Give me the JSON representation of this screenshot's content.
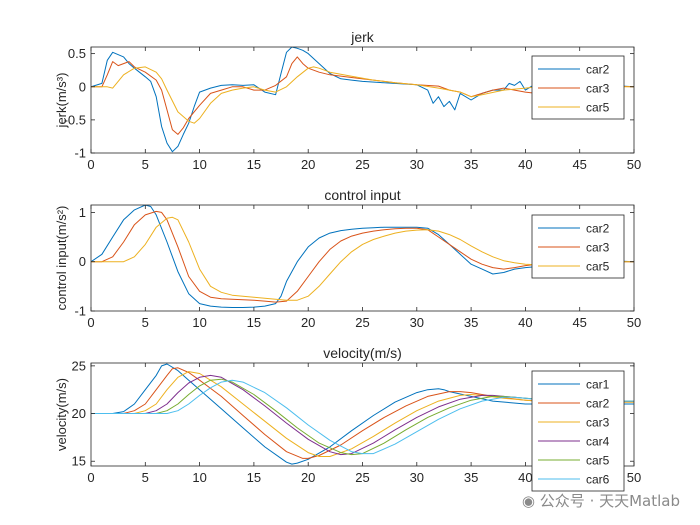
{
  "chart_data": [
    {
      "type": "line",
      "title": "jerk",
      "ylabel": "jerk(m/s³)",
      "xlim": [
        0,
        50
      ],
      "ylim": [
        -1,
        0.6
      ],
      "xticks": [
        0,
        5,
        10,
        15,
        20,
        25,
        30,
        35,
        40,
        45,
        50
      ],
      "yticks": [
        -1,
        -0.5,
        0,
        0.5
      ],
      "ytick_labels": [
        "-1",
        "-0.5",
        "0",
        "0.5"
      ],
      "legend": "top-right",
      "series": [
        {
          "name": "car2",
          "color": "#0072BD",
          "x": [
            0,
            1,
            1.5,
            2,
            3,
            3.5,
            4,
            5,
            5.5,
            6,
            6.5,
            7,
            7.5,
            8,
            8.5,
            9,
            9.5,
            10,
            11,
            12,
            13,
            14,
            15,
            16,
            17,
            17.5,
            18,
            18.5,
            19,
            19.5,
            20,
            21,
            22,
            23,
            24,
            25,
            27,
            30,
            31,
            31.5,
            32,
            32.5,
            33,
            33.5,
            34,
            35,
            36,
            37,
            38,
            38.5,
            39,
            39.5,
            40,
            41,
            42,
            43,
            44,
            45,
            46,
            47,
            48,
            49,
            50
          ],
          "y": [
            0,
            0.05,
            0.4,
            0.52,
            0.45,
            0.35,
            0.28,
            0.15,
            0.08,
            -0.15,
            -0.6,
            -0.85,
            -0.98,
            -0.9,
            -0.72,
            -0.55,
            -0.3,
            -0.08,
            -0.02,
            0.02,
            0.03,
            0.02,
            0.03,
            -0.08,
            -0.12,
            0.2,
            0.52,
            0.6,
            0.58,
            0.55,
            0.5,
            0.35,
            0.2,
            0.12,
            0.1,
            0.08,
            0.06,
            0.03,
            -0.05,
            -0.25,
            -0.15,
            -0.3,
            -0.22,
            -0.35,
            -0.1,
            -0.2,
            -0.1,
            -0.05,
            -0.05,
            0.05,
            0.02,
            0.08,
            -0.05,
            0.05,
            0.02,
            -0.02,
            0.03,
            0.02,
            -0.02,
            0.01,
            0,
            0.01,
            0
          ]
        },
        {
          "name": "car3",
          "color": "#D95319",
          "x": [
            0,
            1,
            1.5,
            2,
            2.5,
            3,
            3.5,
            4,
            5,
            6,
            6.5,
            7,
            7.5,
            8,
            8.5,
            9,
            10,
            11,
            12,
            13,
            14,
            15,
            16,
            17,
            18,
            18.5,
            19,
            19.5,
            20,
            21,
            22,
            24,
            26,
            28,
            30,
            32,
            33,
            34,
            35,
            36,
            37,
            38,
            39,
            40,
            41,
            42,
            43,
            44,
            45,
            46,
            48,
            50
          ],
          "y": [
            0,
            0,
            0.18,
            0.38,
            0.32,
            0.35,
            0.38,
            0.3,
            0.22,
            0.1,
            -0.05,
            -0.35,
            -0.65,
            -0.72,
            -0.62,
            -0.48,
            -0.28,
            -0.1,
            -0.05,
            0,
            0,
            -0.05,
            -0.05,
            0.02,
            0.15,
            0.35,
            0.45,
            0.35,
            0.28,
            0.22,
            0.18,
            0.14,
            0.1,
            0.06,
            0.03,
            0.01,
            -0.05,
            -0.08,
            -0.15,
            -0.1,
            -0.05,
            -0.02,
            -0.05,
            -0.08,
            -0.1,
            -0.02,
            0.05,
            0.02,
            0.05,
            0,
            0.01,
            0
          ]
        },
        {
          "name": "car5",
          "color": "#EDB120",
          "x": [
            0,
            1,
            1.5,
            2,
            3,
            4,
            5,
            6,
            6.5,
            7,
            8,
            9,
            9.5,
            10,
            11,
            12,
            13,
            14,
            15,
            16,
            17,
            18,
            19,
            20,
            20.5,
            21,
            22,
            24,
            26,
            28,
            30,
            32,
            34,
            35,
            36,
            38,
            40,
            42,
            44,
            46,
            48,
            50
          ],
          "y": [
            0,
            0,
            0,
            -0.02,
            0.18,
            0.28,
            0.3,
            0.22,
            0.12,
            -0.05,
            -0.38,
            -0.52,
            -0.55,
            -0.48,
            -0.25,
            -0.1,
            -0.05,
            -0.02,
            0,
            -0.05,
            -0.08,
            0,
            0.15,
            0.28,
            0.3,
            0.28,
            0.22,
            0.16,
            0.1,
            0.06,
            0.03,
            -0.02,
            -0.08,
            -0.15,
            -0.12,
            -0.05,
            -0.02,
            0.02,
            0.02,
            0,
            0,
            0
          ]
        }
      ]
    },
    {
      "type": "line",
      "title": "control input",
      "ylabel": "control input(m/s²)",
      "xlim": [
        0,
        50
      ],
      "ylim": [
        -1,
        1.15
      ],
      "xticks": [
        0,
        5,
        10,
        15,
        20,
        25,
        30,
        35,
        40,
        45,
        50
      ],
      "yticks": [
        -1,
        0,
        1
      ],
      "ytick_labels": [
        "-1",
        "0",
        "1"
      ],
      "legend": "top-right",
      "series": [
        {
          "name": "car2",
          "color": "#0072BD",
          "x": [
            0,
            1,
            2,
            3,
            4,
            5,
            5.5,
            6,
            7,
            8,
            9,
            10,
            11,
            12,
            13,
            14,
            15,
            16,
            17,
            17.5,
            18,
            19,
            20,
            21,
            22,
            23,
            24,
            25,
            26,
            27,
            28,
            29,
            30,
            31,
            32,
            33,
            34,
            35,
            36,
            37,
            38,
            39,
            40,
            41,
            42,
            43,
            44,
            45,
            46,
            47,
            48,
            49,
            50
          ],
          "y": [
            0,
            0.15,
            0.5,
            0.85,
            1.05,
            1.15,
            1.12,
            0.95,
            0.4,
            -0.2,
            -0.65,
            -0.85,
            -0.9,
            -0.92,
            -0.93,
            -0.93,
            -0.92,
            -0.9,
            -0.85,
            -0.7,
            -0.4,
            0,
            0.3,
            0.48,
            0.58,
            0.63,
            0.66,
            0.68,
            0.69,
            0.7,
            0.7,
            0.7,
            0.7,
            0.68,
            0.55,
            0.35,
            0.15,
            -0.05,
            -0.15,
            -0.25,
            -0.22,
            -0.15,
            -0.12,
            -0.1,
            -0.02,
            0.02,
            -0.02,
            0.05,
            0,
            0.02,
            0,
            0.01,
            0
          ]
        },
        {
          "name": "car3",
          "color": "#D95319",
          "x": [
            0,
            1,
            2,
            3,
            4,
            5,
            6,
            6.5,
            7,
            8,
            9,
            10,
            11,
            12,
            13,
            14,
            15,
            16,
            17,
            18,
            19,
            20,
            21,
            22,
            23,
            24,
            25,
            26,
            27,
            28,
            29,
            30,
            31,
            32,
            33,
            34,
            35,
            36,
            37,
            38,
            39,
            40,
            41,
            42,
            43,
            44,
            45,
            46,
            47,
            48,
            49,
            50
          ],
          "y": [
            0,
            0,
            0.1,
            0.4,
            0.75,
            0.95,
            1.02,
            1,
            0.85,
            0.3,
            -0.3,
            -0.6,
            -0.72,
            -0.75,
            -0.76,
            -0.77,
            -0.78,
            -0.8,
            -0.82,
            -0.8,
            -0.6,
            -0.3,
            0,
            0.25,
            0.42,
            0.52,
            0.58,
            0.62,
            0.65,
            0.67,
            0.68,
            0.68,
            0.65,
            0.5,
            0.35,
            0.2,
            0.05,
            -0.05,
            -0.12,
            -0.15,
            -0.12,
            -0.08,
            -0.05,
            -0.05,
            -0.02,
            0,
            0.02,
            0,
            0,
            0.01,
            0,
            0
          ]
        },
        {
          "name": "car5",
          "color": "#EDB120",
          "x": [
            0,
            1,
            2,
            3,
            4,
            5,
            6,
            7,
            7.5,
            8,
            9,
            10,
            11,
            12,
            13,
            14,
            15,
            16,
            17,
            18,
            19,
            20,
            21,
            22,
            23,
            24,
            25,
            26,
            27,
            28,
            29,
            30,
            31,
            32,
            33,
            34,
            35,
            36,
            37,
            38,
            39,
            40,
            41,
            42,
            43,
            44,
            45,
            46,
            48,
            50
          ],
          "y": [
            0,
            0,
            0,
            0,
            0.1,
            0.35,
            0.7,
            0.88,
            0.9,
            0.85,
            0.4,
            -0.15,
            -0.5,
            -0.62,
            -0.68,
            -0.7,
            -0.72,
            -0.74,
            -0.76,
            -0.78,
            -0.78,
            -0.7,
            -0.5,
            -0.25,
            0,
            0.2,
            0.35,
            0.45,
            0.52,
            0.58,
            0.62,
            0.64,
            0.65,
            0.62,
            0.55,
            0.45,
            0.32,
            0.2,
            0.1,
            0.02,
            -0.02,
            -0.05,
            -0.06,
            -0.05,
            -0.03,
            -0.02,
            0,
            0.01,
            0,
            0
          ]
        }
      ]
    },
    {
      "type": "line",
      "title": "velocity(m/s)",
      "ylabel": "velocity(m/s)",
      "xlim": [
        0,
        50
      ],
      "ylim": [
        14.5,
        25.3
      ],
      "xticks": [
        0,
        5,
        10,
        15,
        20,
        25,
        30,
        35,
        40,
        45,
        50
      ],
      "yticks": [
        15,
        20,
        25
      ],
      "ytick_labels": [
        "15",
        "20",
        "25"
      ],
      "legend": "top-right",
      "series": [
        {
          "name": "car1",
          "color": "#0072BD",
          "x": [
            0,
            2,
            3,
            4,
            5,
            6,
            6.5,
            7,
            8,
            9,
            10,
            12,
            14,
            16,
            18,
            18.5,
            19,
            20,
            22,
            24,
            26,
            28,
            30,
            31,
            32,
            32.5,
            33,
            35,
            37,
            40,
            45,
            50
          ],
          "y": [
            20,
            20,
            20.2,
            21,
            22.5,
            24,
            25,
            25.2,
            24.5,
            23.5,
            22.5,
            20.5,
            18.5,
            16.5,
            14.9,
            14.7,
            14.8,
            15.2,
            16.5,
            18.2,
            19.8,
            21.2,
            22.2,
            22.5,
            22.6,
            22.5,
            22.3,
            21.8,
            21.3,
            21,
            21,
            21
          ]
        },
        {
          "name": "car2",
          "color": "#D95319",
          "x": [
            0,
            3,
            4,
            5,
            6,
            7,
            7.5,
            8,
            9,
            10,
            12,
            14,
            16,
            18,
            19.5,
            20,
            21,
            23,
            25,
            27,
            29,
            31,
            33,
            34,
            35,
            37,
            40,
            43,
            46,
            50
          ],
          "y": [
            20,
            20,
            20.3,
            21,
            22.5,
            24,
            24.7,
            24.8,
            24.3,
            23.5,
            21.8,
            19.8,
            17.8,
            16,
            15.3,
            15.3,
            15.6,
            16.7,
            18.2,
            19.6,
            20.8,
            21.8,
            22.3,
            22.3,
            22.2,
            21.8,
            21.4,
            21.2,
            21.2,
            21.2
          ]
        },
        {
          "name": "car3",
          "color": "#EDB120",
          "x": [
            0,
            4,
            5,
            6,
            7,
            8,
            9,
            10,
            12,
            14,
            16,
            18,
            20,
            21,
            22,
            24,
            26,
            28,
            30,
            32,
            34,
            35,
            36,
            38,
            41,
            44,
            47,
            50
          ],
          "y": [
            20,
            20,
            20.3,
            21,
            22.5,
            23.8,
            24.4,
            24.2,
            22.8,
            21,
            19.2,
            17.4,
            15.9,
            15.5,
            15.5,
            16.3,
            17.6,
            19,
            20.3,
            21.3,
            21.9,
            22,
            21.9,
            21.6,
            21.3,
            21.2,
            21.2,
            21.2
          ]
        },
        {
          "name": "car4",
          "color": "#7E2F8E",
          "x": [
            0,
            5,
            6,
            7,
            8,
            9,
            10,
            11,
            12,
            14,
            16,
            18,
            20,
            22,
            23,
            24,
            26,
            28,
            30,
            32,
            34,
            36,
            37,
            39,
            42,
            45,
            48,
            50
          ],
          "y": [
            20,
            20,
            20.3,
            21,
            22.2,
            23.2,
            23.8,
            24,
            23.8,
            22.5,
            20.8,
            19,
            17.3,
            16,
            15.7,
            15.8,
            16.9,
            18.3,
            19.6,
            20.7,
            21.5,
            21.9,
            21.9,
            21.7,
            21.4,
            21.3,
            21.3,
            21.3
          ]
        },
        {
          "name": "car5",
          "color": "#77AC30",
          "x": [
            0,
            6,
            7,
            8,
            9,
            10,
            11,
            12,
            13,
            15,
            17,
            19,
            21,
            23,
            24,
            25,
            27,
            29,
            31,
            33,
            35,
            37,
            38,
            40,
            43,
            46,
            50
          ],
          "y": [
            20,
            20,
            20.3,
            21,
            22,
            22.9,
            23.5,
            23.6,
            23.3,
            22,
            20.3,
            18.5,
            16.9,
            15.9,
            15.7,
            15.8,
            16.9,
            18.3,
            19.6,
            20.6,
            21.4,
            21.8,
            21.8,
            21.6,
            21.4,
            21.3,
            21.3
          ]
        },
        {
          "name": "car6",
          "color": "#4DBEEE",
          "x": [
            0,
            7,
            8,
            9,
            10,
            11,
            12,
            13,
            14,
            16,
            18,
            20,
            22,
            24,
            25,
            26,
            28,
            30,
            32,
            34,
            36,
            38,
            39,
            41,
            44,
            47,
            50
          ],
          "y": [
            20,
            20,
            20.3,
            21,
            21.9,
            22.7,
            23.3,
            23.5,
            23.3,
            22.2,
            20.6,
            18.8,
            17.2,
            16,
            15.8,
            15.8,
            16.8,
            18.1,
            19.4,
            20.5,
            21.3,
            21.7,
            21.7,
            21.5,
            21.3,
            21.3,
            21.3
          ]
        }
      ]
    }
  ],
  "watermark": {
    "text": "公众号 · 天天Matlab",
    "icon": "wechat-icon"
  }
}
